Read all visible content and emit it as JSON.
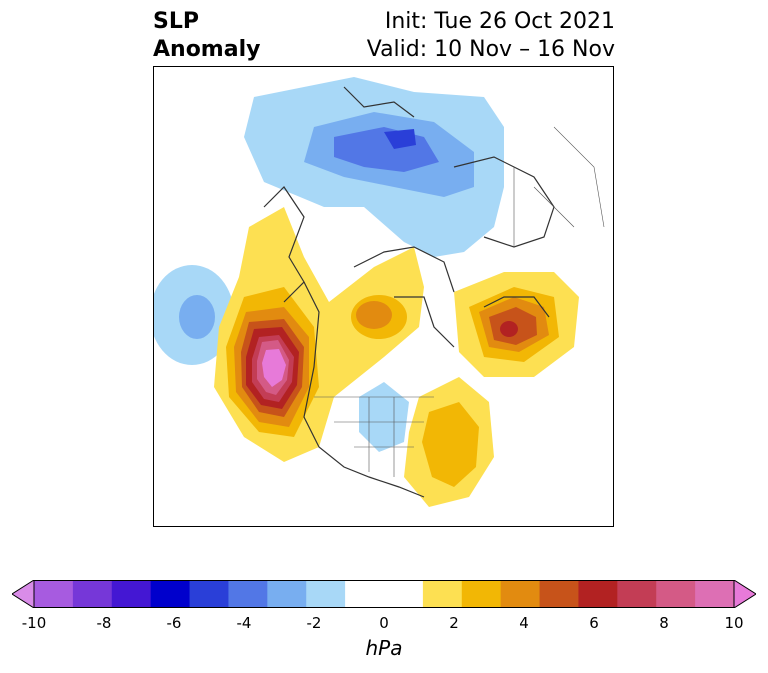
{
  "header": {
    "title_line1": "SLP",
    "title_line2": "Anomaly",
    "init_text": "Init: Tue 26 Oct 2021",
    "valid_text": "Valid: 10 Nov – 16 Nov"
  },
  "colorbar": {
    "unit": "hPa",
    "ticks": [
      "-10",
      "-8",
      "-6",
      "-4",
      "-2",
      "0",
      "2",
      "4",
      "6",
      "8",
      "10"
    ],
    "colors": [
      "#d98ce8",
      "#a75be0",
      "#7637d8",
      "#4417d3",
      "#0000cc",
      "#2a3fd8",
      "#5277e6",
      "#78aef0",
      "#a8d8f7",
      "#ffffff",
      "#ffffff",
      "#fde052",
      "#f2b705",
      "#e28b10",
      "#c7531a",
      "#b22222",
      "#c33d55",
      "#d45a86",
      "#dd6fb4",
      "#e77ad9"
    ],
    "extend": "both"
  },
  "map": {
    "projection": "north polar stereographic",
    "variable": "sea level pressure anomaly",
    "legend_position": "bottom"
  }
}
